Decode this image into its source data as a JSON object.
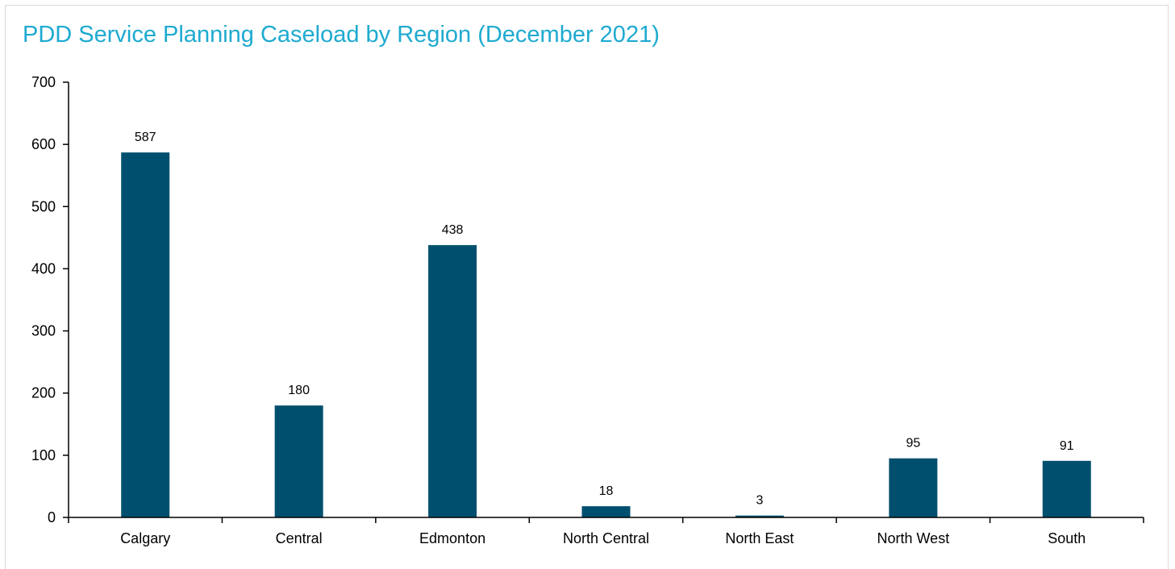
{
  "chart_data": {
    "type": "bar",
    "title": "PDD Service Planning Caseload by Region (December 2021)",
    "xlabel": "",
    "ylabel": "",
    "categories": [
      "Calgary",
      "Central",
      "Edmonton",
      "North Central",
      "North East",
      "North West",
      "South"
    ],
    "values": [
      587,
      180,
      438,
      18,
      3,
      95,
      91
    ],
    "data_labels": [
      "587",
      "180",
      "438",
      "18",
      "3",
      "95",
      "91"
    ],
    "ylim": [
      0,
      700
    ],
    "yticks": [
      0,
      100,
      200,
      300,
      400,
      500,
      600,
      700
    ],
    "grid": false,
    "legend": "none"
  },
  "colors": {
    "title": "#1eaad0",
    "bar": "#004f6e",
    "axis": "#000000",
    "border": "#d9d9d9"
  }
}
